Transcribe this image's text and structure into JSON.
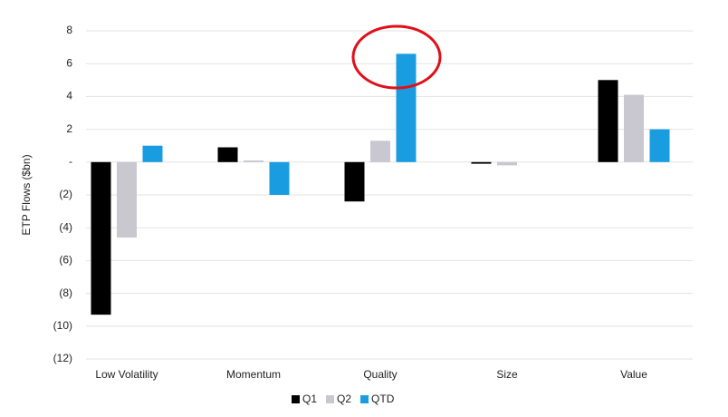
{
  "chart_data": {
    "type": "bar",
    "y_label": "ETP Flows ($bn)",
    "categories": [
      "Low Volatility",
      "Momentum",
      "Quality",
      "Size",
      "Value"
    ],
    "series": [
      {
        "name": "Q1",
        "color": "#000000",
        "values": [
          -9.3,
          0.9,
          -2.4,
          -0.1,
          5.0
        ]
      },
      {
        "name": "Q2",
        "color": "#c9c7d0",
        "values": [
          -4.6,
          0.1,
          1.3,
          -0.2,
          4.1
        ]
      },
      {
        "name": "QTD",
        "color": "#1a9de0",
        "values": [
          1.0,
          -2.0,
          6.6,
          0,
          2.0
        ]
      }
    ],
    "ylim": [
      -12,
      8
    ],
    "yticks": [
      {
        "value": -12,
        "label": "(12)"
      },
      {
        "value": -10,
        "label": "(10)"
      },
      {
        "value": -8,
        "label": "(8)"
      },
      {
        "value": -6,
        "label": "(6)"
      },
      {
        "value": -4,
        "label": "(4)"
      },
      {
        "value": -2,
        "label": "(2)"
      },
      {
        "value": 0,
        "label": "-"
      },
      2,
      4,
      6,
      8
    ],
    "grid": true
  }
}
